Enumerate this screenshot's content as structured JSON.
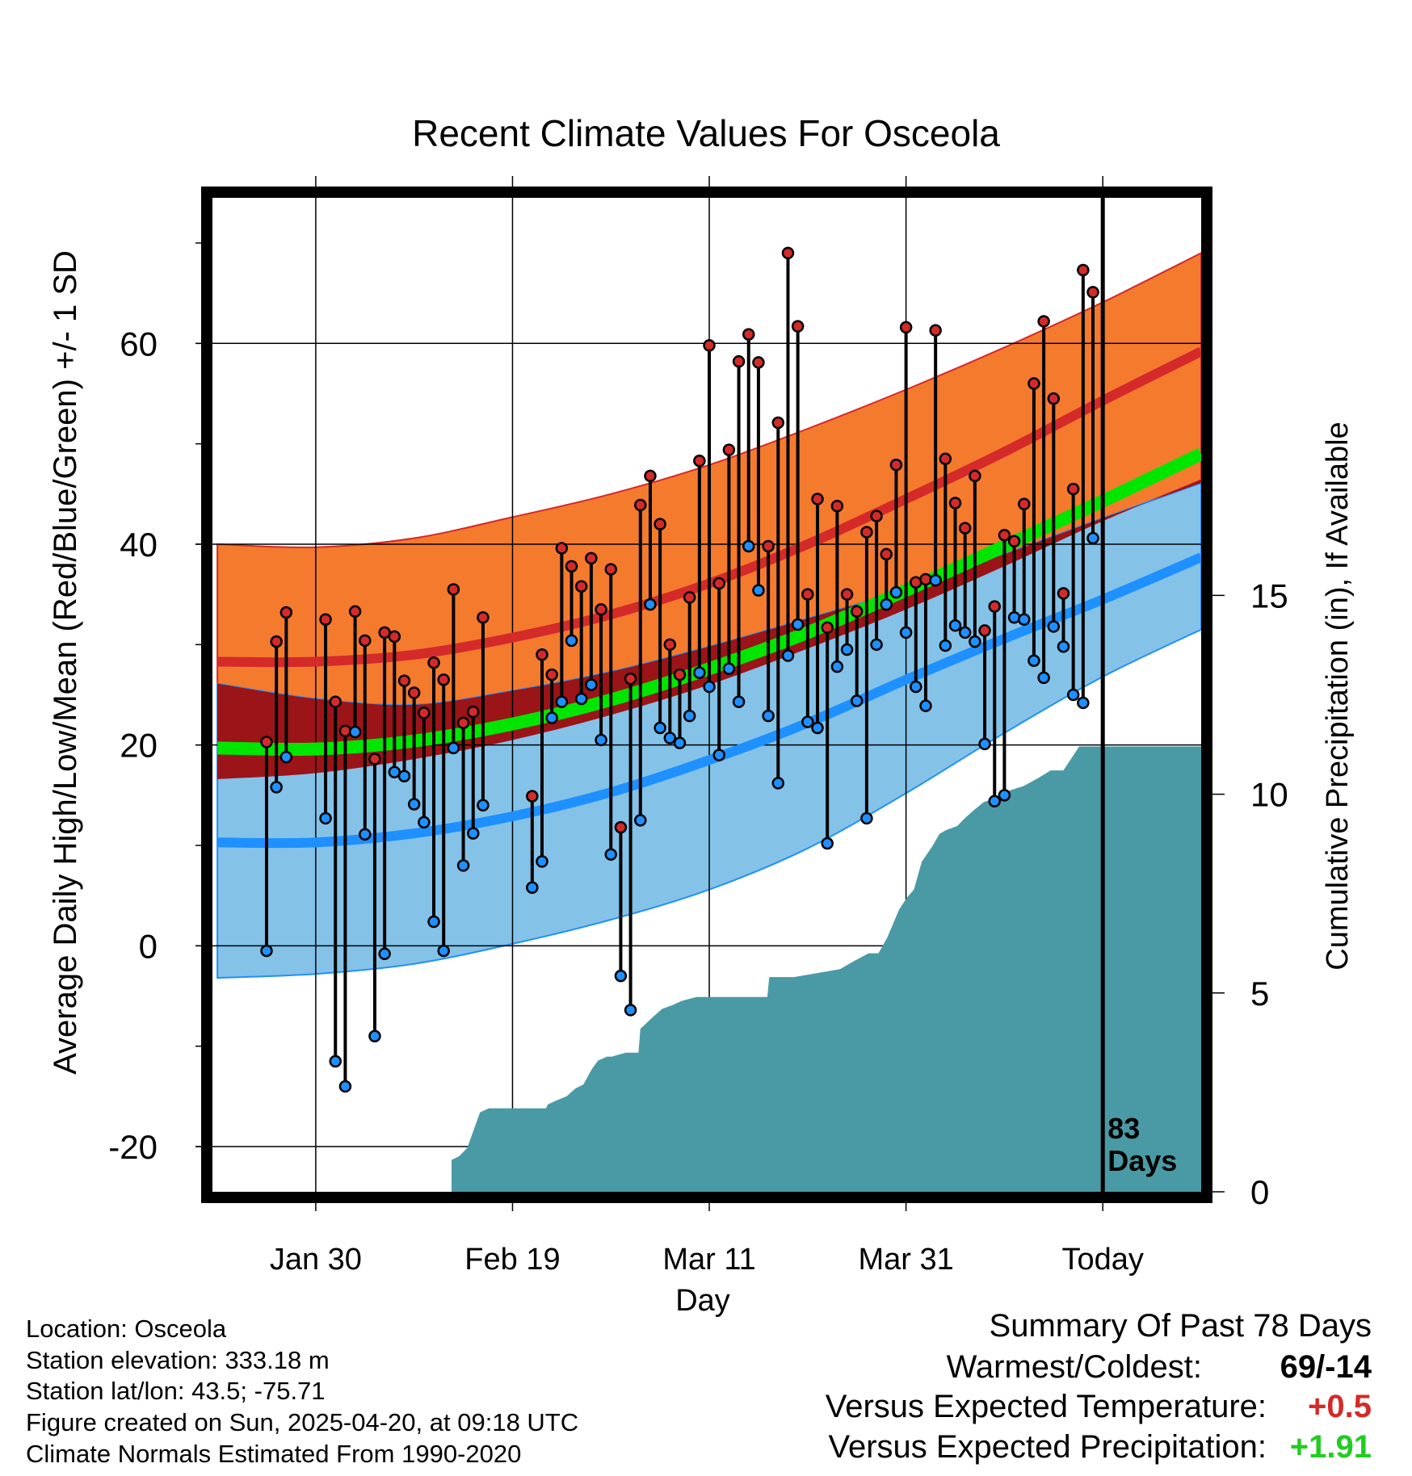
{
  "chart_data": {
    "type": "line",
    "title": "Recent Climate Values For Osceola",
    "xlabel": "Day",
    "ylabel_left": "Average Daily High/Low/Mean (Red/Blue/Green) +/- 1 SD",
    "ylabel_right": "Cumulative Precipitation (in), If Available",
    "x_ticks": [
      "Jan 30",
      "Feb 19",
      "Mar 11",
      "Mar 31",
      "Today"
    ],
    "x_tick_days": [
      10,
      30,
      50,
      70,
      90
    ],
    "xlim": [
      -0.5,
      100
    ],
    "ylim": [
      -24.5,
      74.5
    ],
    "y_ticks": [
      "60",
      "40",
      "20",
      "0",
      "-20"
    ],
    "y_tick_values": [
      60,
      40,
      20,
      0,
      -20
    ],
    "precip_ylim": [
      0,
      25
    ],
    "precip_ticks": [
      "15",
      "10",
      "5",
      "0"
    ],
    "precip_tick_values": [
      15,
      10,
      5,
      0
    ],
    "today_label": "83\nDays",
    "normals": {
      "day": [
        0,
        10,
        20,
        30,
        40,
        50,
        60,
        70,
        80,
        90,
        100
      ],
      "high_mean": [
        28.3,
        28.3,
        29.0,
        30.7,
        33.0,
        36.1,
        40.0,
        44.5,
        49.2,
        54.3,
        59.2
      ],
      "high_upper": [
        40.0,
        39.7,
        40.6,
        42.7,
        45.0,
        47.9,
        51.5,
        55.4,
        59.6,
        64.1,
        69.0
      ],
      "high_lower": [
        16.6,
        17.2,
        18.6,
        20.5,
        23.0,
        26.0,
        29.6,
        33.5,
        37.8,
        42.3,
        46.4
      ],
      "low_mean": [
        10.3,
        10.3,
        11.2,
        12.9,
        15.3,
        18.5,
        22.2,
        26.5,
        30.6,
        34.5,
        38.7
      ],
      "low_upper": [
        26.1,
        24.6,
        24.0,
        25.4,
        27.3,
        29.8,
        32.6,
        35.5,
        39.0,
        42.6,
        46.1
      ],
      "low_lower": [
        -3.2,
        -2.8,
        -1.8,
        0.2,
        2.6,
        5.6,
        9.7,
        15.2,
        21.2,
        26.8,
        31.5
      ],
      "avg_mean": [
        19.7,
        19.6,
        20.4,
        22.1,
        24.5,
        27.6,
        31.2,
        35.4,
        39.8,
        44.3,
        49.0
      ]
    },
    "daily": {
      "day": [
        5,
        6,
        7,
        11,
        12,
        13,
        14,
        15,
        16,
        17,
        18,
        19,
        20,
        21,
        22,
        23,
        24,
        25,
        26,
        27,
        28,
        29,
        32,
        33,
        34,
        35,
        36,
        37,
        38,
        39,
        40,
        41,
        42,
        43,
        44,
        45,
        46,
        47,
        48,
        49,
        50,
        51,
        52,
        53,
        54,
        55,
        56,
        57,
        58,
        59,
        60,
        61,
        62,
        63,
        64,
        65,
        66,
        67,
        68,
        69,
        70,
        71,
        72,
        73,
        74,
        75,
        76,
        77,
        78,
        79,
        80,
        81,
        82,
        83,
        84,
        85,
        86,
        87,
        88,
        89,
        90,
        91
      ],
      "high": [
        20.3,
        30.3,
        33.2,
        32.5,
        24.3,
        21.4,
        33.3,
        30.4,
        18.6,
        31.2,
        30.8,
        26.4,
        25.2,
        23.2,
        28.2,
        26.5,
        35.5,
        22.2,
        23.3,
        32.7,
        0,
        0,
        14.9,
        29.0,
        27.0,
        39.6,
        37.8,
        35.8,
        38.6,
        33.5,
        37.5,
        11.8,
        26.6,
        43.9,
        46.8,
        42.0,
        30.0,
        27.0,
        34.7,
        48.3,
        59.8,
        36.1,
        49.4,
        58.2,
        60.9,
        58.1,
        39.8,
        52.1,
        69.0,
        61.7,
        35.0,
        44.5,
        31.7,
        43.8,
        35.0,
        33.3,
        41.2,
        42.8,
        39.0,
        47.9,
        61.6,
        36.2,
        36.5,
        61.3,
        48.5,
        44.1,
        41.6,
        46.8,
        31.4,
        33.8,
        40.9,
        40.3,
        44.0,
        56.0,
        62.2,
        54.5,
        35.1,
        45.5,
        67.3,
        65.1,
        0,
        0
      ],
      "low": [
        -0.5,
        15.8,
        18.8,
        12.7,
        -11.5,
        -14.0,
        21.3,
        11.1,
        -9.0,
        -0.8,
        17.3,
        16.9,
        14.1,
        12.3,
        2.4,
        -0.5,
        19.7,
        8.0,
        11.2,
        14.0,
        0,
        0,
        5.8,
        8.4,
        22.7,
        24.3,
        30.4,
        24.6,
        26.0,
        20.5,
        9.1,
        -3.0,
        -6.4,
        12.5,
        34.0,
        21.7,
        20.7,
        20.2,
        22.9,
        27.2,
        25.8,
        19.0,
        27.6,
        24.3,
        39.8,
        35.4,
        22.9,
        16.2,
        28.9,
        32.0,
        22.3,
        21.7,
        10.2,
        27.8,
        29.5,
        24.4,
        12.7,
        30.0,
        34.0,
        35.2,
        31.2,
        25.8,
        23.9,
        36.4,
        29.9,
        31.9,
        31.2,
        30.3,
        20.1,
        14.4,
        15.0,
        32.7,
        32.5,
        28.4,
        26.7,
        31.8,
        29.8,
        25.0,
        24.2,
        40.6,
        0,
        0
      ],
      "valid": [
        1,
        1,
        1,
        1,
        1,
        1,
        1,
        1,
        1,
        1,
        1,
        1,
        1,
        1,
        1,
        1,
        1,
        1,
        1,
        1,
        0,
        0,
        1,
        1,
        1,
        1,
        1,
        1,
        1,
        1,
        1,
        1,
        1,
        1,
        1,
        1,
        1,
        1,
        1,
        1,
        1,
        1,
        1,
        1,
        1,
        1,
        1,
        1,
        1,
        1,
        1,
        1,
        1,
        1,
        1,
        1,
        1,
        1,
        1,
        1,
        1,
        1,
        1,
        1,
        1,
        1,
        1,
        1,
        1,
        1,
        1,
        1,
        1,
        1,
        1,
        1,
        1,
        1,
        1,
        1,
        0,
        0
      ]
    },
    "precip": {
      "day": [
        23.8,
        24.6,
        25.4,
        26.7,
        27.6,
        33.4,
        33.6,
        34.5,
        35.5,
        36.4,
        37.2,
        38.1,
        38.7,
        39.6,
        40.1,
        41.5,
        42.8,
        43.0,
        44.3,
        45.2,
        46.3,
        47.2,
        48.7,
        51.1,
        55.9,
        56.1,
        57.8,
        58.6,
        63.3,
        64.0,
        64.7,
        66.2,
        67.2,
        68.1,
        69.3,
        70.1,
        70.8,
        71.6,
        72.7,
        73.4,
        74.1,
        75.2,
        76.0,
        76.9,
        77.9,
        79.1,
        80.6,
        81.9,
        83.4,
        84.7,
        86.0,
        87.6,
        88.6,
        89.5,
        100.0
      ],
      "value": [
        0.8,
        0.9,
        1.1,
        2.0,
        2.1,
        2.1,
        2.2,
        2.3,
        2.4,
        2.6,
        2.7,
        3.1,
        3.3,
        3.4,
        3.4,
        3.5,
        3.5,
        4.1,
        4.4,
        4.6,
        4.7,
        4.8,
        4.9,
        4.9,
        4.9,
        5.4,
        5.4,
        5.4,
        5.6,
        5.7,
        5.8,
        6.0,
        6.0,
        6.4,
        7.1,
        7.4,
        7.6,
        8.3,
        8.7,
        9.0,
        9.1,
        9.2,
        9.4,
        9.6,
        9.8,
        9.9,
        10.1,
        10.2,
        10.4,
        10.6,
        10.6,
        11.2,
        11.2,
        11.2,
        11.2
      ]
    },
    "colors": {
      "high_band": "#f47a2e",
      "high_line": "#d42a2a",
      "low_band": "#84c2e8",
      "low_line": "#1e90ff",
      "overlap_band": "#9a1418",
      "mean_line": "#00e600",
      "precip_fill": "#4a9aa5",
      "high_dot": "#d42a2a",
      "low_dot": "#1e90ff"
    }
  },
  "footer": {
    "location": "Location: Osceola",
    "elevation": "Station elevation: 333.18 m",
    "latlon": "Station lat/lon: 43.5; -75.71",
    "created": "Figure created on Sun, 2025-04-20, at 09:18 UTC",
    "normals": "Climate Normals Estimated From 1990-2020"
  },
  "summary": {
    "heading": "Summary Of Past 78 Days",
    "warm_cold_label": "Warmest/Coldest:",
    "warm_cold_value": "69/-14",
    "temp_label": "Versus Expected Temperature:",
    "temp_value": "+0.5",
    "temp_color": "#d42a2a",
    "precip_label": "Versus Expected Precipitation:",
    "precip_value": "+1.91",
    "precip_color": "#22cc22"
  }
}
